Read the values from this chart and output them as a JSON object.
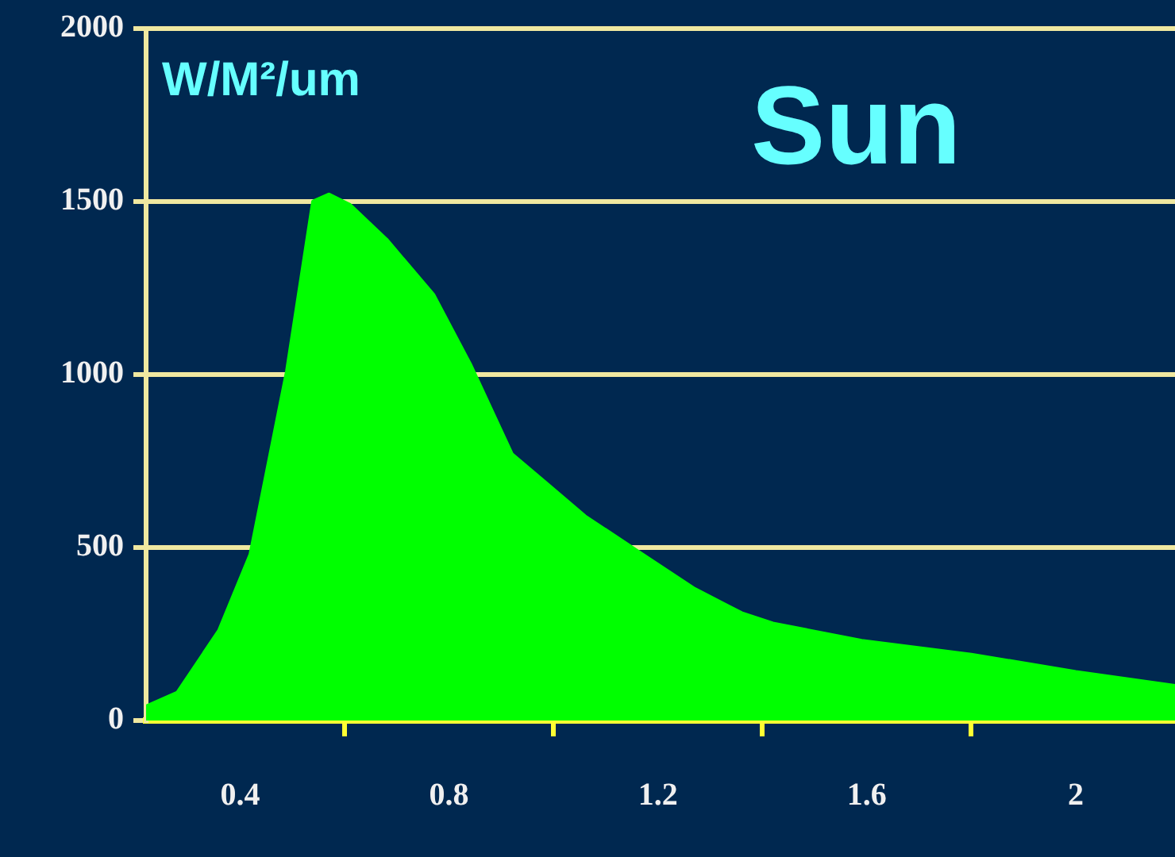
{
  "chart_data": {
    "type": "area",
    "title": "Sun",
    "ylabel": "W/M²/um",
    "x": [
      0.22,
      0.28,
      0.36,
      0.42,
      0.49,
      0.54,
      0.57,
      0.61,
      0.68,
      0.77,
      0.84,
      0.92,
      0.99,
      1.06,
      1.17,
      1.27,
      1.36,
      1.42,
      1.59,
      1.8,
      2.0,
      2.19
    ],
    "series": [
      {
        "color": "#00ff00",
        "values": [
          40,
          80,
          260,
          480,
          1010,
          1500,
          1520,
          1490,
          1390,
          1230,
          1030,
          770,
          680,
          590,
          480,
          380,
          310,
          280,
          230,
          190,
          140,
          100
        ]
      }
    ],
    "xlim": [
      0.22,
      2.19
    ],
    "xticks": [
      0.4,
      {
        "value": 0.6,
        "label": null
      },
      0.8,
      {
        "value": 1.0,
        "label": null
      },
      1.2,
      {
        "value": 1.4,
        "label": null
      },
      1.6,
      {
        "value": 1.8,
        "label": null
      },
      2
    ],
    "ylim": [
      0,
      2000
    ],
    "yticks": [
      0,
      500,
      1000,
      1500,
      2000
    ],
    "grid": "y",
    "legend": false,
    "marker": "none",
    "line_style": "solid"
  }
}
